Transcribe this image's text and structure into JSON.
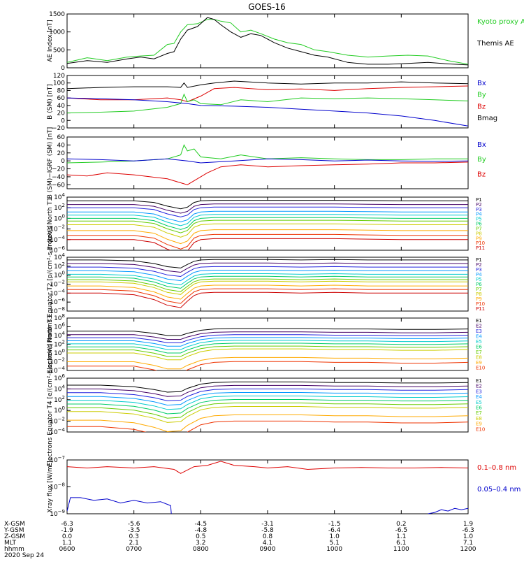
{
  "title": "GOES-16",
  "colors": {
    "black": "#000000",
    "blue": "#0000cc",
    "green": "#22cc22",
    "red": "#dd0000",
    "P": [
      "#000000",
      "#440066",
      "#2222dd",
      "#0099ff",
      "#00cccc",
      "#00cc66",
      "#66cc00",
      "#cccc00",
      "#ffaa00",
      "#ee3300",
      "#cc0000"
    ],
    "E": [
      "#000000",
      "#440066",
      "#2222dd",
      "#0099ff",
      "#00cccc",
      "#00cc66",
      "#66cc00",
      "#cccc00",
      "#ffaa00",
      "#ee3300",
      "#cc0000"
    ]
  },
  "time_axis": {
    "ticks": [
      "0600",
      "0700",
      "0800",
      "0900",
      "1000",
      "1100",
      "1200"
    ],
    "range_hours": [
      6,
      12
    ]
  },
  "footer": {
    "row_labels": [
      "X-GSM",
      "Y-GSM",
      "Z-GSM",
      "MLT",
      "hhmm"
    ],
    "rows": [
      [
        "-6.3",
        "-5.6",
        "-4.5",
        "-3.1",
        "-1.5",
        "0.2",
        "1.9"
      ],
      [
        "-1.9",
        "-3.5",
        "-4.8",
        "-5.8",
        "-6.4",
        "-6.5",
        "-6.3"
      ],
      [
        "0.0",
        "0.3",
        "0.5",
        "0.8",
        "1.0",
        "1.1",
        "1.0"
      ],
      [
        "1.1",
        "2.1",
        "3.2",
        "4.1",
        "5.1",
        "6.1",
        "7.1"
      ],
      [
        "0600",
        "0700",
        "0800",
        "0900",
        "1000",
        "1100",
        "1200"
      ]
    ],
    "date": "2020 Sep 24"
  },
  "chart_data": [
    {
      "type": "line",
      "ylabel": "AE Index [nT]",
      "ylim": [
        0,
        1500
      ],
      "yscale": "linear",
      "yticks": [
        "0",
        "500",
        "1000",
        "1500"
      ],
      "legend": [
        {
          "name": "Kyoto proxy AE",
          "color": "#22cc22"
        },
        {
          "name": "Themis AE",
          "color": "#000000"
        }
      ],
      "series": [
        {
          "name": "Kyoto proxy AE",
          "color": "#22cc22",
          "x": [
            6.0,
            6.3,
            6.6,
            6.9,
            7.1,
            7.3,
            7.5,
            7.6,
            7.7,
            7.8,
            7.95,
            8.1,
            8.2,
            8.3,
            8.45,
            8.6,
            8.75,
            8.9,
            9.1,
            9.3,
            9.5,
            9.7,
            9.9,
            10.2,
            10.5,
            10.8,
            11.1,
            11.4,
            11.7,
            12.0
          ],
          "y": [
            150,
            280,
            200,
            300,
            330,
            350,
            650,
            680,
            1000,
            1200,
            1230,
            1350,
            1350,
            1300,
            1250,
            1000,
            1050,
            950,
            800,
            700,
            650,
            500,
            450,
            350,
            300,
            330,
            350,
            330,
            200,
            100
          ]
        },
        {
          "name": "Themis AE",
          "color": "#000000",
          "x": [
            6.0,
            6.3,
            6.6,
            6.9,
            7.1,
            7.3,
            7.5,
            7.6,
            7.7,
            7.8,
            7.95,
            8.1,
            8.2,
            8.3,
            8.45,
            8.6,
            8.75,
            8.9,
            9.1,
            9.3,
            9.5,
            9.7,
            9.9,
            10.2,
            10.5,
            10.8,
            11.1,
            11.4,
            11.7,
            12.0
          ],
          "y": [
            120,
            200,
            150,
            250,
            300,
            250,
            400,
            450,
            800,
            1050,
            1150,
            1400,
            1350,
            1200,
            1000,
            850,
            950,
            900,
            700,
            550,
            450,
            350,
            300,
            150,
            100,
            100,
            120,
            150,
            110,
            80
          ]
        }
      ]
    },
    {
      "type": "line",
      "ylabel": "B (SM) [nT]",
      "ylim": [
        -20,
        120
      ],
      "yscale": "linear",
      "yticks": [
        "−20",
        "0",
        "20",
        "40",
        "60",
        "80",
        "100",
        "120"
      ],
      "legend": [
        {
          "name": "Bx",
          "color": "#0000cc"
        },
        {
          "name": "By",
          "color": "#22cc22"
        },
        {
          "name": "Bz",
          "color": "#dd0000"
        },
        {
          "name": "Bmag",
          "color": "#000000"
        }
      ],
      "series": [
        {
          "name": "Bmag",
          "color": "#000000",
          "x": [
            6.0,
            6.5,
            7.0,
            7.5,
            7.7,
            7.75,
            7.8,
            8.0,
            8.2,
            8.5,
            9.0,
            9.5,
            10.0,
            10.5,
            11.0,
            11.5,
            12.0
          ],
          "y": [
            85,
            88,
            90,
            90,
            88,
            100,
            88,
            95,
            100,
            105,
            100,
            97,
            100,
            100,
            103,
            100,
            98
          ]
        },
        {
          "name": "Bz",
          "color": "#dd0000",
          "x": [
            6.0,
            6.5,
            7.0,
            7.5,
            7.7,
            7.8,
            8.0,
            8.2,
            8.5,
            9.0,
            9.5,
            10.0,
            10.5,
            11.0,
            11.5,
            12.0
          ],
          "y": [
            60,
            55,
            55,
            60,
            55,
            50,
            65,
            85,
            88,
            82,
            84,
            80,
            85,
            88,
            90,
            92
          ]
        },
        {
          "name": "By",
          "color": "#22cc22",
          "x": [
            6.0,
            6.5,
            7.0,
            7.5,
            7.7,
            7.75,
            7.8,
            7.9,
            8.0,
            8.3,
            8.6,
            9.0,
            9.5,
            10.0,
            10.5,
            11.0,
            11.5,
            12.0
          ],
          "y": [
            20,
            22,
            25,
            35,
            45,
            70,
            50,
            55,
            45,
            42,
            55,
            50,
            60,
            58,
            60,
            58,
            55,
            52
          ]
        },
        {
          "name": "Bx",
          "color": "#0000cc",
          "x": [
            6.0,
            6.5,
            7.0,
            7.5,
            7.8,
            8.0,
            8.5,
            9.0,
            9.5,
            10.0,
            10.5,
            11.0,
            11.5,
            12.0
          ],
          "y": [
            60,
            58,
            55,
            50,
            45,
            40,
            38,
            35,
            30,
            25,
            20,
            12,
            0,
            -15
          ]
        }
      ]
    },
    {
      "type": "line",
      "ylabel": "B (SM)−IGRF (SM) [nT]",
      "ylim": [
        -70,
        60
      ],
      "yscale": "linear",
      "yticks": [
        "−60",
        "−40",
        "−20",
        "0",
        "20",
        "40",
        "60"
      ],
      "legend": [
        {
          "name": "Bx",
          "color": "#0000cc"
        },
        {
          "name": "By",
          "color": "#22cc22"
        },
        {
          "name": "Bz",
          "color": "#dd0000"
        }
      ],
      "series": [
        {
          "name": "By",
          "color": "#22cc22",
          "x": [
            6.0,
            6.5,
            7.0,
            7.5,
            7.7,
            7.75,
            7.8,
            7.9,
            8.0,
            8.3,
            8.6,
            9.0,
            9.5,
            10.0,
            10.5,
            11.0,
            11.5,
            12.0
          ],
          "y": [
            -5,
            -3,
            0,
            5,
            15,
            40,
            25,
            30,
            10,
            5,
            15,
            5,
            8,
            5,
            3,
            3,
            5,
            5
          ]
        },
        {
          "name": "Bx",
          "color": "#0000cc",
          "x": [
            6.0,
            6.5,
            7.0,
            7.5,
            7.8,
            8.0,
            8.5,
            9.0,
            9.5,
            10.0,
            10.5,
            11.0,
            11.5,
            12.0
          ],
          "y": [
            5,
            3,
            0,
            5,
            0,
            -5,
            0,
            5,
            3,
            0,
            2,
            0,
            -1,
            0
          ]
        },
        {
          "name": "Bz",
          "color": "#dd0000",
          "x": [
            6.0,
            6.3,
            6.6,
            7.0,
            7.5,
            7.7,
            7.8,
            7.9,
            8.1,
            8.3,
            8.6,
            9.0,
            9.5,
            10.0,
            10.5,
            11.0,
            11.5,
            12.0
          ],
          "y": [
            -35,
            -38,
            -30,
            -35,
            -45,
            -55,
            -60,
            -50,
            -30,
            -15,
            -10,
            -15,
            -12,
            -10,
            -8,
            -5,
            -5,
            -3
          ]
        }
      ]
    },
    {
      "type": "line",
      "ylabel": "Protons North T1",
      "ylim": [
        -6,
        4
      ],
      "yscale": "log",
      "yticks": [
        "10^4",
        "10^2",
        "10^0",
        "10^-2",
        "10^-4",
        "10^-6"
      ],
      "legend": [
        "P1",
        "P2",
        "P3",
        "P4",
        "P5",
        "P6",
        "P7",
        "P8",
        "P9",
        "P10",
        "P11"
      ],
      "x": [
        6.0,
        6.5,
        7.0,
        7.3,
        7.5,
        7.7,
        7.8,
        7.9,
        8.0,
        8.2,
        8.5,
        9.0,
        9.5,
        10.0,
        10.5,
        11.0,
        11.5,
        12.0
      ],
      "shape": [
        0,
        0,
        0,
        -0.3,
        -1.0,
        -1.5,
        -1.2,
        -0.3,
        0,
        0.1,
        0.1,
        0.1,
        0.1,
        0.1,
        0.05,
        0.0,
        0.0,
        0.0
      ],
      "levels_log10": [
        3.3,
        2.6,
        2.0,
        1.2,
        0.6,
        0.0,
        -0.5,
        -1.2,
        -2.3,
        -3.2,
        -4.0
      ]
    },
    {
      "type": "line",
      "ylabel": "Protons Equator T2 [p/(cm²-s-sr-keV)]",
      "ylim": [
        -8,
        4
      ],
      "yscale": "log",
      "yticks": [
        "10^4",
        "10^2",
        "10^0",
        "10^-2",
        "10^-4",
        "10^-6",
        "10^-8"
      ],
      "legend": [
        "P1",
        "P2",
        "P3",
        "P4",
        "P5",
        "P6",
        "P7",
        "P8",
        "P9",
        "P10",
        "P11"
      ],
      "x": [
        6.0,
        6.5,
        7.0,
        7.3,
        7.5,
        7.7,
        7.8,
        7.9,
        8.0,
        8.2,
        8.5,
        9.0,
        9.5,
        10.0,
        10.5,
        11.0,
        11.5,
        12.0
      ],
      "shape": [
        0,
        0,
        -0.2,
        -0.8,
        -1.5,
        -1.8,
        -1.0,
        -0.3,
        0,
        0.1,
        0.1,
        0.1,
        0.0,
        0.1,
        0.0,
        0.0,
        0.0,
        0.0
      ],
      "levels_log10": [
        3.4,
        2.6,
        1.8,
        1.0,
        0.2,
        -0.4,
        -1.0,
        -1.5,
        -2.4,
        -3.2,
        -4.0
      ]
    },
    {
      "type": "line",
      "ylabel": "Electrons North T3",
      "ylim": [
        -4,
        8
      ],
      "yscale": "log",
      "yticks": [
        "10^8",
        "10^6",
        "10^4",
        "10^2",
        "10^0",
        "10^-2",
        "10^-4"
      ],
      "legend": [
        "E1",
        "E2",
        "E3",
        "E4",
        "E5",
        "E6",
        "E7",
        "E8",
        "E9",
        "E10"
      ],
      "x": [
        6.0,
        6.5,
        7.0,
        7.3,
        7.5,
        7.7,
        7.8,
        8.0,
        8.2,
        8.5,
        9.0,
        9.5,
        10.0,
        10.5,
        11.0,
        11.5,
        12.0
      ],
      "shape": [
        0,
        0,
        0,
        -0.5,
        -1.0,
        -1.0,
        -0.5,
        0.2,
        0.5,
        0.6,
        0.6,
        0.6,
        0.5,
        0.5,
        0.4,
        0.4,
        0.5
      ],
      "levels_log10": [
        5.0,
        4.2,
        3.5,
        2.8,
        2.1,
        1.4,
        0.7,
        0.0,
        -2.0,
        -3.0
      ]
    },
    {
      "type": "line",
      "ylabel": "Electrons Equator T4 [e/(cm²-s-sr-keV)]",
      "ylim": [
        -4,
        6
      ],
      "yscale": "log",
      "yticks": [
        "10^6",
        "10^4",
        "10^2",
        "10^0",
        "10^-2",
        "10^-4"
      ],
      "legend": [
        "E1",
        "E2",
        "E3",
        "E4",
        "E5",
        "E6",
        "E7",
        "E8",
        "E9",
        "E10"
      ],
      "x": [
        6.0,
        6.5,
        7.0,
        7.3,
        7.5,
        7.7,
        7.8,
        8.0,
        8.2,
        8.5,
        9.0,
        9.5,
        10.0,
        10.5,
        11.0,
        11.5,
        12.0
      ],
      "shape": [
        0,
        0,
        -0.3,
        -0.8,
        -1.3,
        -1.2,
        -0.6,
        0.2,
        0.5,
        0.6,
        0.6,
        0.6,
        0.5,
        0.5,
        0.4,
        0.4,
        0.5
      ],
      "levels_log10": [
        4.7,
        4.0,
        3.3,
        2.6,
        1.9,
        1.2,
        0.5,
        -0.2,
        -1.8,
        -3.0
      ]
    },
    {
      "type": "line",
      "ylabel": "Xray flux [W/m²]",
      "ylim": [
        -9,
        -7
      ],
      "yscale": "log",
      "yticks": [
        "10^-7",
        "10^-8",
        "10^-9"
      ],
      "legend": [
        {
          "name": "0.1–0.8 nm",
          "color": "#dd0000"
        },
        {
          "name": "0.05–0.4 nm",
          "color": "#0000cc"
        }
      ],
      "series": [
        {
          "name": "0.1–0.8 nm",
          "color": "#dd0000",
          "x": [
            6.0,
            6.3,
            6.6,
            7.0,
            7.3,
            7.6,
            7.7,
            7.9,
            8.1,
            8.3,
            8.5,
            8.8,
            9.0,
            9.3,
            9.6,
            10.0,
            10.4,
            10.8,
            11.2,
            11.6,
            12.0
          ],
          "y_log10": [
            -7.25,
            -7.3,
            -7.25,
            -7.3,
            -7.25,
            -7.35,
            -7.5,
            -7.25,
            -7.2,
            -7.05,
            -7.2,
            -7.25,
            -7.3,
            -7.25,
            -7.35,
            -7.3,
            -7.28,
            -7.3,
            -7.3,
            -7.28,
            -7.3
          ]
        },
        {
          "name": "0.05–0.4 nm",
          "color": "#0000cc",
          "x": [
            6.0,
            6.05,
            6.2,
            6.4,
            6.6,
            6.8,
            7.0,
            7.2,
            7.4,
            7.5,
            7.55,
            7.56
          ],
          "y_log10": [
            -8.9,
            -8.4,
            -8.4,
            -8.5,
            -8.45,
            -8.6,
            -8.5,
            -8.6,
            -8.55,
            -8.65,
            -8.7,
            -9.0
          ]
        },
        {
          "name": "0.05–0.4 nm",
          "color": "#0000cc",
          "x": [
            11.4,
            11.5,
            11.6,
            11.7,
            11.8,
            11.9,
            12.0
          ],
          "y_log10": [
            -9.0,
            -8.95,
            -8.85,
            -8.9,
            -8.8,
            -8.85,
            -8.8
          ]
        }
      ]
    }
  ]
}
